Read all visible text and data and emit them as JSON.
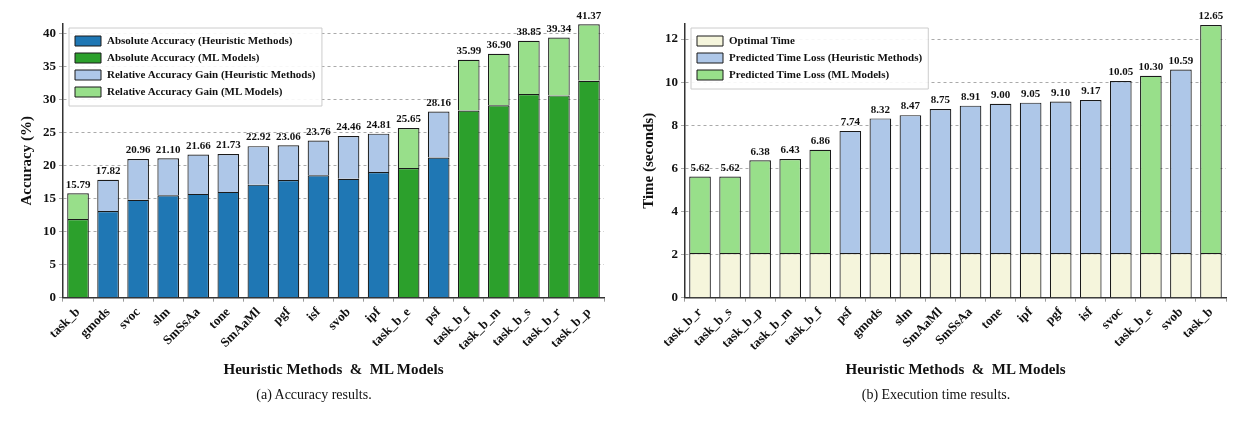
{
  "chart_data": [
    {
      "type": "bar",
      "stacked": true,
      "xlabel": "Heuristic Methods  &  ML Models",
      "ylabel": "Accuracy (%)",
      "annotations": [
        "(a) Accuracy results."
      ],
      "categories": [
        "task_b",
        "gmods",
        "svoc",
        "slm",
        "SmSsAa",
        "tone",
        "SmAaMl",
        "pgf",
        "isf",
        "svob",
        "ipf",
        "task_b_e",
        "psf",
        "task_b_f",
        "task_b_m",
        "task_b_s",
        "task_b_r",
        "task_b_p"
      ],
      "ylim": [
        0,
        41.4
      ],
      "yticks": [
        0,
        5,
        10,
        15,
        20,
        25,
        30,
        35,
        40
      ],
      "grid": "y",
      "legend": "top left",
      "series": [
        {
          "name": "Absolute Accuracy (Heuristic Methods)",
          "color": "#1f77b4",
          "values": [
            null,
            13.1,
            14.8,
            15.5,
            15.7,
            16.0,
            17.1,
            17.8,
            18.5,
            18.0,
            19.0,
            null,
            21.2,
            null,
            null,
            null,
            null,
            null
          ]
        },
        {
          "name": "Absolute Accuracy (ML Models)",
          "color": "#2ca02c",
          "values": [
            11.9,
            null,
            null,
            null,
            null,
            null,
            null,
            null,
            null,
            null,
            null,
            19.6,
            null,
            28.3,
            29.1,
            30.8,
            30.6,
            32.8
          ]
        },
        {
          "name": "Relative Accuracy Gain (Heuristic Methods)",
          "color": "#aec7e8",
          "values": [
            null,
            4.72,
            6.16,
            5.6,
            5.96,
            5.73,
            5.82,
            5.26,
            5.26,
            6.46,
            5.81,
            null,
            6.96,
            null,
            null,
            null,
            null,
            null
          ]
        },
        {
          "name": "Relative Accuracy Gain (ML Models)",
          "color": "#98df8a",
          "values": [
            3.89,
            null,
            null,
            null,
            null,
            null,
            null,
            null,
            null,
            null,
            null,
            6.05,
            null,
            7.69,
            7.8,
            8.05,
            8.74,
            8.57
          ]
        }
      ],
      "totals": [
        "15.79",
        "17.82",
        "20.96",
        "21.10",
        "21.66",
        "21.73",
        "22.92",
        "23.06",
        "23.76",
        "24.46",
        "24.81",
        "25.65",
        "28.16",
        "35.99",
        "36.90",
        "38.85",
        "39.34",
        "41.37"
      ]
    },
    {
      "type": "bar",
      "stacked": true,
      "xlabel": "Heuristic Methods  &  ML Models",
      "ylabel": "Time (seconds)",
      "annotations": [
        "(b) Execution time results."
      ],
      "categories": [
        "task_b_r",
        "task_b_s",
        "task_b_p",
        "task_b_m",
        "task_b_f",
        "psf",
        "gmods",
        "slm",
        "SmAaMl",
        "SmSsAa",
        "tone",
        "ipf",
        "pgf",
        "isf",
        "svoc",
        "task_b_e",
        "svob",
        "task_b"
      ],
      "ylim": [
        0,
        12.7
      ],
      "yticks": [
        0,
        2,
        4,
        6,
        8,
        10,
        12
      ],
      "grid": "y",
      "legend": "top left",
      "series": [
        {
          "name": "Optimal Time",
          "color": "#f5f5dc",
          "values": [
            2.07,
            2.07,
            2.07,
            2.07,
            2.07,
            2.07,
            2.07,
            2.07,
            2.07,
            2.07,
            2.07,
            2.07,
            2.07,
            2.07,
            2.07,
            2.07,
            2.07,
            2.07
          ]
        },
        {
          "name": "Predicted Time Loss (Heuristic Methods)",
          "color": "#aec7e8",
          "values": [
            null,
            null,
            null,
            null,
            null,
            5.67,
            6.25,
            6.4,
            6.68,
            6.84,
            6.93,
            6.98,
            7.03,
            7.1,
            7.98,
            null,
            8.52,
            null
          ]
        },
        {
          "name": "Predicted Time Loss (ML Models)",
          "color": "#98df8a",
          "values": [
            3.55,
            3.55,
            4.31,
            4.36,
            4.79,
            null,
            null,
            null,
            null,
            null,
            null,
            null,
            null,
            null,
            null,
            8.23,
            null,
            10.58
          ]
        }
      ],
      "totals": [
        "5.62",
        "5.62",
        "6.38",
        "6.43",
        "6.86",
        "7.74",
        "8.32",
        "8.47",
        "8.75",
        "8.91",
        "9.00",
        "9.05",
        "9.10",
        "9.17",
        "10.05",
        "10.30",
        "10.59",
        "12.65"
      ]
    }
  ]
}
